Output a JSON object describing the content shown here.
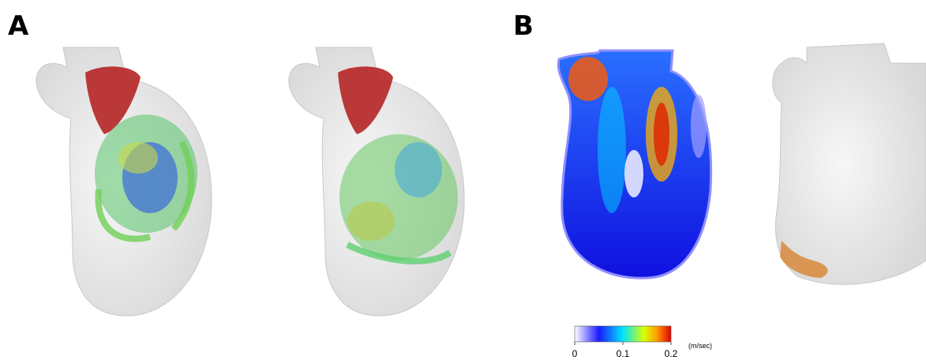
{
  "panels": [
    {
      "label": "A"
    },
    {
      "label": "B"
    }
  ],
  "colorbar": {
    "lim": [
      0,
      0.2
    ],
    "ticks": [
      0,
      0.1,
      0.2
    ],
    "unit": "(m/sec)"
  }
}
